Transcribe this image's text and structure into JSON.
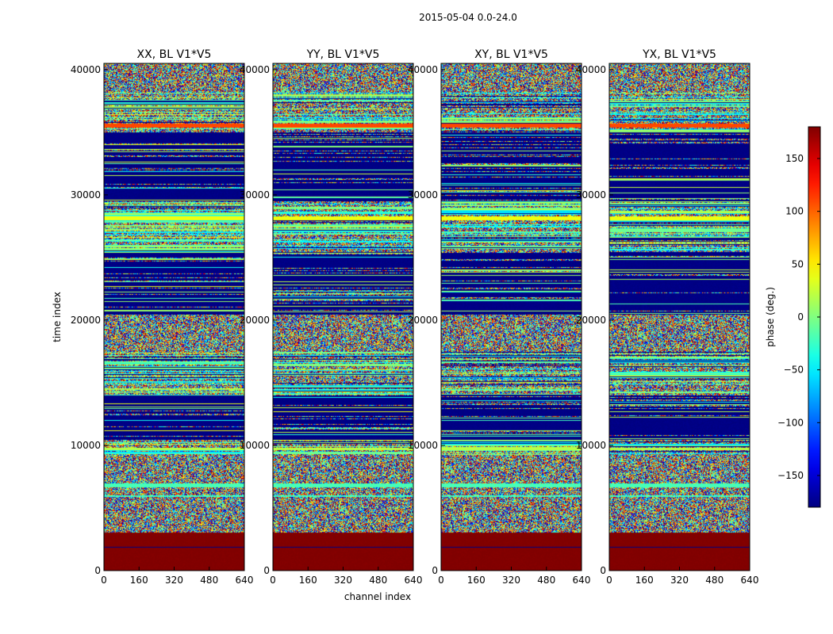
{
  "chart_data": {
    "type": "heatmap",
    "suptitle": "2015-05-04 0.0-24.0",
    "xlabel": "channel index",
    "ylabel": "time index",
    "xlim": [
      0,
      640
    ],
    "ylim": [
      0,
      40500
    ],
    "xticks": [
      0,
      160,
      320,
      480,
      640
    ],
    "yticks": [
      0,
      10000,
      20000,
      30000,
      40000
    ],
    "colormap": "jet",
    "colorbar": {
      "label": "phase (deg.)",
      "range": [
        -180,
        180
      ],
      "ticks": [
        150,
        100,
        50,
        0,
        -50,
        -100,
        -150
      ],
      "tick_labels": [
        "150",
        "100",
        "50",
        "0",
        "−50",
        "−100",
        "−150"
      ]
    },
    "panels": [
      {
        "title": "XX, BL V1*V5"
      },
      {
        "title": "YY, BL V1*V5"
      },
      {
        "title": "XY, BL V1*V5"
      },
      {
        "title": "YX, BL V1*V5"
      }
    ],
    "bands": [
      {
        "from": 0,
        "to": 3100,
        "pattern": "const",
        "phase": 180
      },
      {
        "from": 1850,
        "to": 1950,
        "pattern": "const",
        "phase": -180
      },
      {
        "from": 3100,
        "to": 9300,
        "pattern": "noise"
      },
      {
        "from": 6700,
        "to": 7000,
        "pattern": "const",
        "phase": -20
      },
      {
        "from": 5900,
        "to": 6050,
        "pattern": "const",
        "phase": -25
      },
      {
        "from": 9300,
        "to": 10500,
        "pattern": "stripes"
      },
      {
        "from": 9650,
        "to": 9850,
        "pattern": "const",
        "phase": 20
      },
      {
        "from": 10500,
        "to": 14000,
        "pattern": "mostlyblue"
      },
      {
        "from": 14000,
        "to": 17500,
        "pattern": "stripes"
      },
      {
        "from": 17500,
        "to": 20500,
        "pattern": "noise"
      },
      {
        "from": 20500,
        "to": 25500,
        "pattern": "mostlyblue"
      },
      {
        "from": 25500,
        "to": 29500,
        "pattern": "stripes"
      },
      {
        "from": 28000,
        "to": 28300,
        "pattern": "const",
        "phase": 40
      },
      {
        "from": 29500,
        "to": 35000,
        "pattern": "mostlyblue"
      },
      {
        "from": 35000,
        "to": 35900,
        "pattern": "stripes"
      },
      {
        "from": 35400,
        "to": 35700,
        "pattern": "const",
        "phase": 110
      },
      {
        "from": 35900,
        "to": 38300,
        "pattern": "stripes"
      },
      {
        "from": 38300,
        "to": 40500,
        "pattern": "noise"
      }
    ]
  }
}
